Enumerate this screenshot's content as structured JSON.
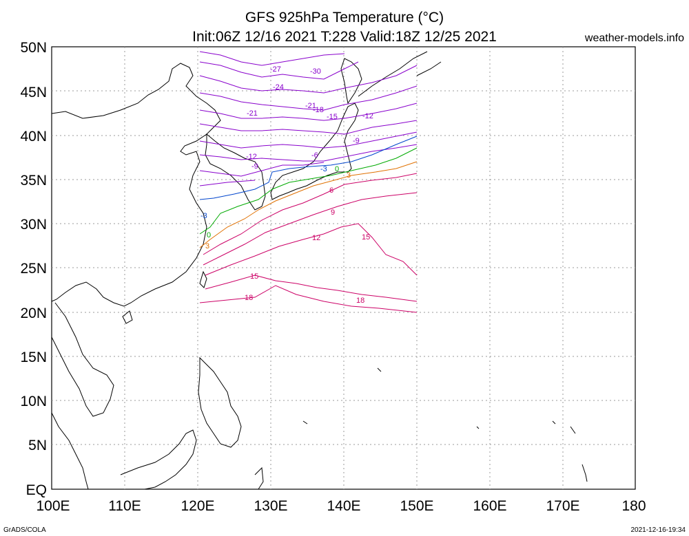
{
  "header": {
    "title_line1": "GFS 925hPa Temperature (°C)",
    "title_line2": "Init:06Z 12/16 2021 T:228 Valid:18Z 12/25 2021",
    "site": "weather-models.info"
  },
  "footer": {
    "left": "GrADS/COLA",
    "right": "2021-12-16-19:34"
  },
  "axes": {
    "lat_labels": [
      "50N",
      "45N",
      "40N",
      "35N",
      "30N",
      "25N",
      "20N",
      "15N",
      "10N",
      "5N",
      "EQ"
    ],
    "lon_labels": [
      "100E",
      "110E",
      "120E",
      "130E",
      "140E",
      "150E",
      "160E",
      "170E",
      "180"
    ]
  },
  "contour_labels": [
    {
      "text": "-30",
      "color": "#8800cc"
    },
    {
      "text": "-27",
      "color": "#8800cc"
    },
    {
      "text": "-24",
      "color": "#8800cc"
    },
    {
      "text": "-21",
      "color": "#8800cc"
    },
    {
      "text": "-21",
      "color": "#8800cc"
    },
    {
      "text": "-18",
      "color": "#8800cc"
    },
    {
      "text": "-15",
      "color": "#8800cc"
    },
    {
      "text": "-12",
      "color": "#8800cc"
    },
    {
      "text": "-12",
      "color": "#8800cc"
    },
    {
      "text": "-9",
      "color": "#8800cc"
    },
    {
      "text": "-9",
      "color": "#8800cc"
    },
    {
      "text": "-6",
      "color": "#8800cc"
    },
    {
      "text": "-3",
      "color": "#0044cc"
    },
    {
      "text": "-3",
      "color": "#0044cc"
    },
    {
      "text": "0",
      "color": "#00aa00"
    },
    {
      "text": "0",
      "color": "#00aa00"
    },
    {
      "text": "3",
      "color": "#e07000"
    },
    {
      "text": "3",
      "color": "#e07000"
    },
    {
      "text": "6",
      "color": "#cc0066"
    },
    {
      "text": "9",
      "color": "#cc0066"
    },
    {
      "text": "12",
      "color": "#cc0066"
    },
    {
      "text": "15",
      "color": "#cc0066"
    },
    {
      "text": "15",
      "color": "#cc0066"
    },
    {
      "text": "18",
      "color": "#cc0066"
    },
    {
      "text": "18",
      "color": "#cc0066"
    }
  ],
  "colors": {
    "cold": "#8800cc",
    "minus3": "#0044cc",
    "zero": "#00aa00",
    "plus3": "#e07000",
    "warm": "#cc0066",
    "coast": "#000000",
    "grid": "#999999"
  }
}
